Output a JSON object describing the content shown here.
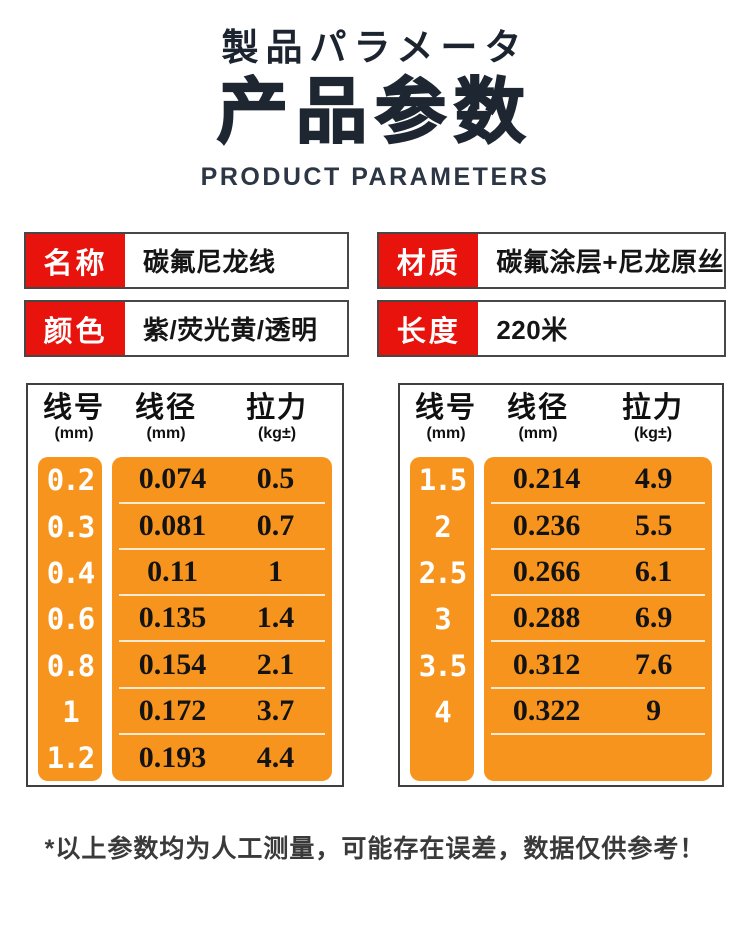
{
  "header": {
    "title_jp": "製品パラメータ",
    "title_cn": "产品参数",
    "subtitle_en": "PRODUCT PARAMETERS"
  },
  "colors": {
    "label_red": "#e9130d",
    "table_orange": "#f7941d",
    "title_ink": "#1e2631",
    "separator": "rgba(255,255,255,0.8)"
  },
  "info_items": [
    {
      "label": "名称",
      "value": "碳氟尼龙线"
    },
    {
      "label": "材质",
      "value": "碳氟涂层+尼龙原丝"
    },
    {
      "label": "颜色",
      "value": "紫/荧光黄/透明"
    },
    {
      "label": "长度",
      "value": "220米"
    }
  ],
  "spec_tables": [
    {
      "columns": [
        {
          "title": "线号",
          "unit": "(mm)"
        },
        {
          "title": "线径",
          "unit": "(mm)"
        },
        {
          "title": "拉力",
          "unit": "(kg±)"
        }
      ],
      "rows": [
        {
          "size": "0.2",
          "diameter": "0.074",
          "strength": "0.5"
        },
        {
          "size": "0.3",
          "diameter": "0.081",
          "strength": "0.7"
        },
        {
          "size": "0.4",
          "diameter": "0.11",
          "strength": "1"
        },
        {
          "size": "0.6",
          "diameter": "0.135",
          "strength": "1.4"
        },
        {
          "size": "0.8",
          "diameter": "0.154",
          "strength": "2.1"
        },
        {
          "size": "1",
          "diameter": "0.172",
          "strength": "3.7"
        },
        {
          "size": "1.2",
          "diameter": "0.193",
          "strength": "4.4"
        }
      ]
    },
    {
      "columns": [
        {
          "title": "线号",
          "unit": "(mm)"
        },
        {
          "title": "线径",
          "unit": "(mm)"
        },
        {
          "title": "拉力",
          "unit": "(kg±)"
        }
      ],
      "rows": [
        {
          "size": "1.5",
          "diameter": "0.214",
          "strength": "4.9"
        },
        {
          "size": "2",
          "diameter": "0.236",
          "strength": "5.5"
        },
        {
          "size": "2.5",
          "diameter": "0.266",
          "strength": "6.1"
        },
        {
          "size": "3",
          "diameter": "0.288",
          "strength": "6.9"
        },
        {
          "size": "3.5",
          "diameter": "0.312",
          "strength": "7.6"
        },
        {
          "size": "4",
          "diameter": "0.322",
          "strength": "9"
        }
      ]
    }
  ],
  "footnote": "*以上参数均为人工测量，可能存在误差，数据仅供参考！"
}
